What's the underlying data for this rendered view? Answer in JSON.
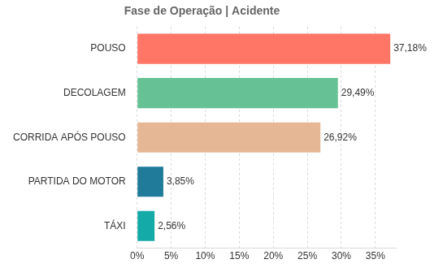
{
  "chart_data": {
    "type": "bar",
    "title": "Fase de Operação | Acidente",
    "orientation": "horizontal",
    "categories": [
      "POUSO",
      "DECOLAGEM",
      "CORRIDA APÓS POUSO",
      "PARTIDA DO MOTOR",
      "TÁXI"
    ],
    "values": [
      37.18,
      29.49,
      26.92,
      3.85,
      2.56
    ],
    "value_labels": [
      "37,18%",
      "29,49%",
      "26,92%",
      "3,85%",
      "2,56%"
    ],
    "colors": [
      "#ff7566",
      "#66c295",
      "#e5b795",
      "#1f7b99",
      "#14aaa8"
    ],
    "xlim": [
      0,
      38
    ],
    "xticks": [
      {
        "value": 0,
        "label": "0%"
      },
      {
        "value": 5,
        "label": "5%"
      },
      {
        "value": 10,
        "label": "10%"
      },
      {
        "value": 15,
        "label": "15%"
      },
      {
        "value": 20,
        "label": "20%"
      },
      {
        "value": 25,
        "label": "25%"
      },
      {
        "value": 30,
        "label": "30%"
      },
      {
        "value": 35,
        "label": "35%"
      }
    ],
    "grid": true,
    "data_labels": true
  }
}
